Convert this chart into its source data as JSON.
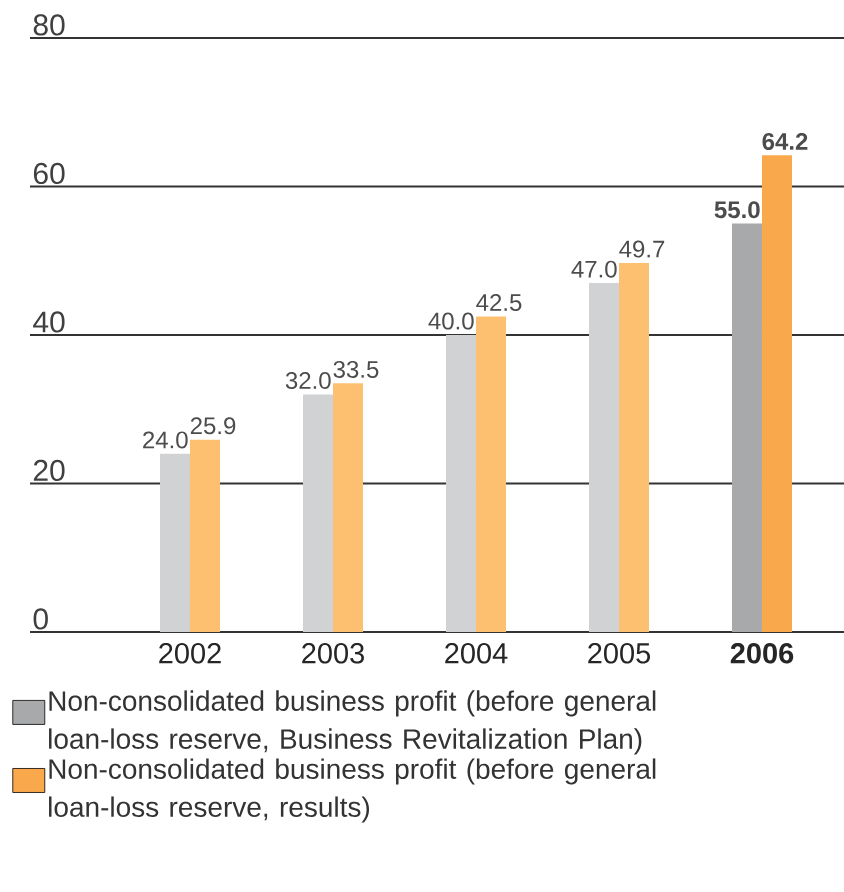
{
  "chart_data": {
    "type": "bar",
    "categories": [
      "2002",
      "2003",
      "2004",
      "2005",
      "**2006**"
    ],
    "series": [
      {
        "name": "Non-consolidated business profit (before general loan-loss reserve, Business Revitalization Plan)",
        "color": "#a8a9ab",
        "colors": [
          "#d1d2d4",
          "#d1d2d4",
          "#d1d2d4",
          "#d1d2d4",
          "#a8a9ab"
        ],
        "values": [
          24.0,
          32.0,
          40.0,
          47.0,
          55.0
        ],
        "value_labels": [
          "24.0",
          "32.0",
          "40.0",
          "47.0",
          "**55.0**"
        ]
      },
      {
        "name": "Non-consolidated business profit (before general loan-loss reserve, results)",
        "color": "#f9a94b",
        "colors": [
          "#fdc070",
          "#fdc070",
          "#fdc070",
          "#fdc070",
          "#f9a94b"
        ],
        "values": [
          25.9,
          33.5,
          42.5,
          49.7,
          64.2
        ],
        "value_labels": [
          "25.9",
          "33.5",
          "42.5",
          "49.7",
          "**64.2**"
        ]
      }
    ],
    "ylim": [
      0,
      80
    ],
    "yticks": [
      0,
      20,
      40,
      60,
      80
    ],
    "grid": "y",
    "legend": "bottom"
  }
}
